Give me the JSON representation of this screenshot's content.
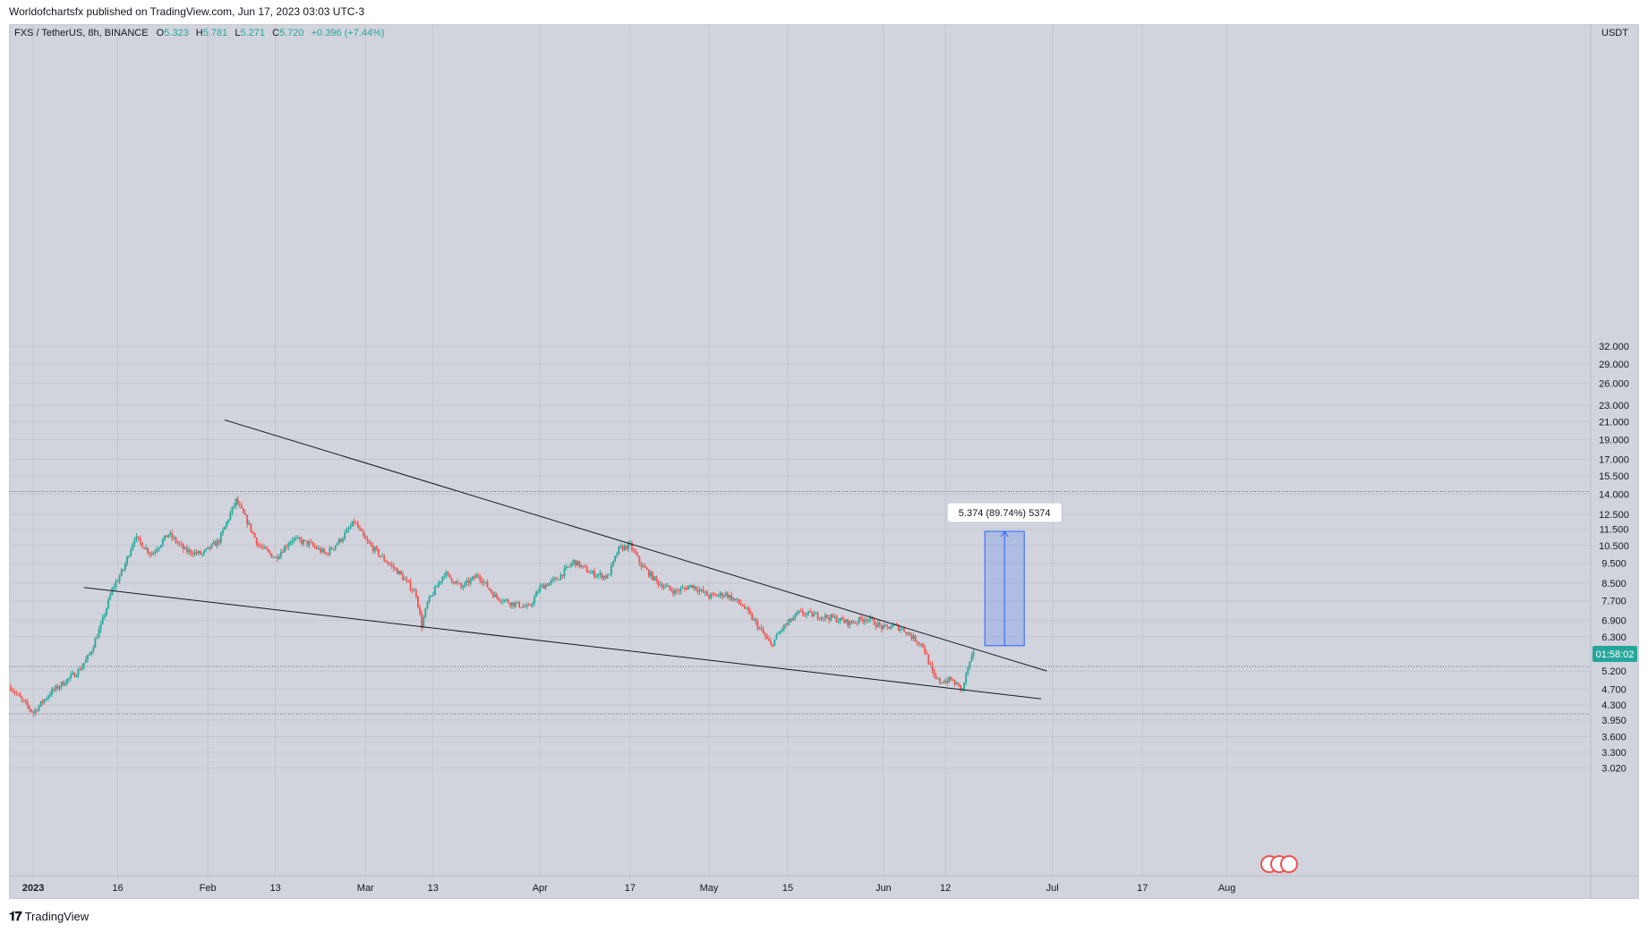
{
  "header": {
    "text": "Worldofchartsfx published on TradingView.com, Jun 17, 2023 03:03 UTC-3"
  },
  "footer": {
    "brand": "TradingView"
  },
  "colors": {
    "up": "#26a69a",
    "down": "#ef5350",
    "background": "#d1d4dc",
    "grid": "#c3c6cf",
    "line": "#131722",
    "projection": "#2962ff"
  },
  "chart_data": {
    "type": "candlestick",
    "symbol_line": {
      "symbol": "FXS / TetherUS, 8h, BINANCE",
      "open": "5.323",
      "high": "5.781",
      "low": "5.271",
      "close": "5.720",
      "change": "+0.396 (+7.44%)"
    },
    "currency": "USDT",
    "scale": "log",
    "y_ticks": [
      "32.000",
      "29.000",
      "26.000",
      "23.000",
      "21.000",
      "19.000",
      "17.000",
      "15.500",
      "14.000",
      "12.500",
      "11.500",
      "10.500",
      "9.500",
      "8.500",
      "7.700",
      "6.900",
      "6.300",
      "5.200",
      "4.700",
      "4.300",
      "3.950",
      "3.600",
      "3.300",
      "3.020"
    ],
    "x_ticks": [
      "2023",
      "16",
      "Feb",
      "13",
      "Mar",
      "13",
      "Apr",
      "17",
      "May",
      "15",
      "Jun",
      "12",
      "Jul",
      "17",
      "Aug"
    ],
    "x_tick_dates": [
      "2023-01-01",
      "2023-01-16",
      "2023-02-01",
      "2023-02-13",
      "2023-03-01",
      "2023-03-13",
      "2023-04-01",
      "2023-04-17",
      "2023-05-01",
      "2023-05-15",
      "2023-06-01",
      "2023-06-12",
      "2023-07-01",
      "2023-07-17",
      "2023-08-01"
    ],
    "last_price_label": "01:58:02",
    "price_path": [
      [
        "2022-12-28",
        4.75
      ],
      [
        "2022-12-30",
        4.4
      ],
      [
        "2023-01-01",
        4.12
      ],
      [
        "2023-01-04",
        4.6
      ],
      [
        "2023-01-07",
        4.95
      ],
      [
        "2023-01-09",
        5.2
      ],
      [
        "2023-01-11",
        5.7
      ],
      [
        "2023-01-13",
        6.7
      ],
      [
        "2023-01-15",
        8.2
      ],
      [
        "2023-01-17",
        9.2
      ],
      [
        "2023-01-19",
        11.0
      ],
      [
        "2023-01-22",
        10.0
      ],
      [
        "2023-01-25",
        11.2
      ],
      [
        "2023-01-28",
        10.2
      ],
      [
        "2023-01-31",
        10.0
      ],
      [
        "2023-02-03",
        10.8
      ],
      [
        "2023-02-06",
        13.5
      ],
      [
        "2023-02-08",
        12.0
      ],
      [
        "2023-02-10",
        10.5
      ],
      [
        "2023-02-13",
        9.8
      ],
      [
        "2023-02-16",
        10.9
      ],
      [
        "2023-02-19",
        10.6
      ],
      [
        "2023-02-22",
        10.0
      ],
      [
        "2023-02-25",
        11.0
      ],
      [
        "2023-02-27",
        12.0
      ],
      [
        "2023-03-01",
        10.8
      ],
      [
        "2023-03-04",
        9.8
      ],
      [
        "2023-03-07",
        9.0
      ],
      [
        "2023-03-10",
        8.0
      ],
      [
        "2023-03-11",
        6.7
      ],
      [
        "2023-03-12",
        7.6
      ],
      [
        "2023-03-15",
        9.0
      ],
      [
        "2023-03-18",
        8.3
      ],
      [
        "2023-03-21",
        8.9
      ],
      [
        "2023-03-24",
        7.9
      ],
      [
        "2023-03-27",
        7.6
      ],
      [
        "2023-03-30",
        7.4
      ],
      [
        "2023-04-01",
        8.3
      ],
      [
        "2023-04-04",
        8.7
      ],
      [
        "2023-04-07",
        9.6
      ],
      [
        "2023-04-10",
        9.0
      ],
      [
        "2023-04-13",
        8.8
      ],
      [
        "2023-04-15",
        10.3
      ],
      [
        "2023-04-17",
        10.5
      ],
      [
        "2023-04-19",
        9.4
      ],
      [
        "2023-04-22",
        8.5
      ],
      [
        "2023-04-25",
        8.1
      ],
      [
        "2023-04-28",
        8.4
      ],
      [
        "2023-05-01",
        7.9
      ],
      [
        "2023-05-04",
        8.0
      ],
      [
        "2023-05-07",
        7.5
      ],
      [
        "2023-05-10",
        6.6
      ],
      [
        "2023-05-12",
        6.0
      ],
      [
        "2023-05-14",
        6.6
      ],
      [
        "2023-05-17",
        7.2
      ],
      [
        "2023-05-20",
        7.1
      ],
      [
        "2023-05-23",
        7.0
      ],
      [
        "2023-05-26",
        6.8
      ],
      [
        "2023-05-29",
        7.0
      ],
      [
        "2023-06-01",
        6.6
      ],
      [
        "2023-06-03",
        6.7
      ],
      [
        "2023-06-05",
        6.5
      ],
      [
        "2023-06-06",
        6.3
      ],
      [
        "2023-06-08",
        6.0
      ],
      [
        "2023-06-10",
        5.0
      ],
      [
        "2023-06-11",
        4.9
      ],
      [
        "2023-06-13",
        4.95
      ],
      [
        "2023-06-15",
        4.68
      ],
      [
        "2023-06-16",
        5.3
      ],
      [
        "2023-06-17",
        5.72
      ]
    ],
    "trendlines": [
      {
        "name": "upper",
        "from": [
          "2023-02-04",
          21.2
        ],
        "to": [
          "2023-06-30",
          5.2
        ]
      },
      {
        "name": "lower",
        "from": [
          "2023-01-10",
          8.3
        ],
        "to": [
          "2023-06-29",
          4.45
        ]
      }
    ],
    "horizontal_lines": [
      14.2,
      5.33,
      4.09
    ],
    "projection": {
      "label": "5.374 (89.74%) 5374",
      "from_date": "2023-06-19",
      "to_date": "2023-06-26",
      "low": 5.99,
      "high": 11.36
    }
  }
}
